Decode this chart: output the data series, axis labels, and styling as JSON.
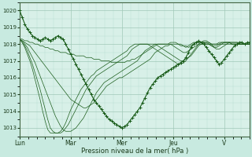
{
  "bg_color": "#c8eae0",
  "plot_bg": "#d8f0e8",
  "grid_color_major": "#a0c8b8",
  "grid_color_minor": "#b8ddd0",
  "line_color": "#1a5c1a",
  "xlabel": "Pression niveau de la mer( hPa )",
  "xtick_labels": [
    "Lun",
    "Mar",
    "Mer",
    "Jeu",
    "V"
  ],
  "xtick_positions": [
    0,
    1,
    2,
    3,
    4
  ],
  "ylim": [
    1012.5,
    1020.5
  ],
  "yticks": [
    1013,
    1014,
    1015,
    1016,
    1017,
    1018,
    1019,
    1020
  ],
  "xlim": [
    0,
    4.5
  ],
  "n_pts": 91,
  "observed": [
    1020.0,
    1019.6,
    1019.2,
    1018.9,
    1018.7,
    1018.5,
    1018.4,
    1018.3,
    1018.2,
    1018.3,
    1018.4,
    1018.3,
    1018.2,
    1018.3,
    1018.4,
    1018.5,
    1018.4,
    1018.3,
    1018.0,
    1017.7,
    1017.4,
    1017.1,
    1016.8,
    1016.5,
    1016.2,
    1015.9,
    1015.6,
    1015.3,
    1015.0,
    1014.7,
    1014.5,
    1014.3,
    1014.1,
    1013.9,
    1013.7,
    1013.5,
    1013.4,
    1013.3,
    1013.2,
    1013.1,
    1013.0,
    1013.1,
    1013.2,
    1013.4,
    1013.6,
    1013.8,
    1014.0,
    1014.2,
    1014.5,
    1014.8,
    1015.1,
    1015.4,
    1015.6,
    1015.8,
    1016.0,
    1016.1,
    1016.2,
    1016.3,
    1016.4,
    1016.5,
    1016.6,
    1016.7,
    1016.8,
    1016.9,
    1017.0,
    1017.2,
    1017.5,
    1017.8,
    1018.0,
    1018.1,
    1018.2,
    1018.1,
    1018.0,
    1017.8,
    1017.6,
    1017.4,
    1017.2,
    1017.0,
    1016.8,
    1016.9,
    1017.1,
    1017.3,
    1017.5,
    1017.7,
    1017.9,
    1018.0,
    1018.1,
    1018.1,
    1018.0,
    1018.1,
    1018.1
  ],
  "forecasts": [
    [
      1018.3,
      1018.3,
      1018.2,
      1018.2,
      1018.1,
      1018.1,
      1018.0,
      1018.0,
      1017.9,
      1017.9,
      1017.8,
      1017.8,
      1017.7,
      1017.7,
      1017.6,
      1017.6,
      1017.5,
      1017.5,
      1017.5,
      1017.4,
      1017.4,
      1017.4,
      1017.3,
      1017.3,
      1017.3,
      1017.3,
      1017.2,
      1017.2,
      1017.2,
      1017.1,
      1017.1,
      1017.1,
      1017.0,
      1017.0,
      1017.0,
      1017.0,
      1016.9,
      1016.9,
      1016.9,
      1016.9,
      1016.9,
      1016.9,
      1017.0,
      1017.0,
      1017.1,
      1017.1,
      1017.2,
      1017.3,
      1017.4,
      1017.5,
      1017.6,
      1017.7,
      1017.8,
      1017.9,
      1018.0,
      1018.0,
      1018.0,
      1018.0,
      1018.0,
      1018.1,
      1018.1,
      1018.1,
      1018.0,
      1018.0,
      1017.9,
      1017.9,
      1017.8,
      1017.9,
      1018.0,
      1018.1,
      1018.1,
      1018.1,
      1018.1,
      1018.1,
      1018.1,
      1018.0,
      1018.0,
      1018.0,
      1018.0,
      1018.1,
      1018.1,
      1018.1,
      1018.1,
      1018.1,
      1018.1,
      1018.1,
      1018.0,
      1018.0,
      1018.0,
      1018.0,
      1018.0
    ],
    [
      1018.3,
      1018.2,
      1018.1,
      1018.0,
      1017.9,
      1017.7,
      1017.5,
      1017.3,
      1017.1,
      1016.9,
      1016.7,
      1016.5,
      1016.3,
      1016.1,
      1015.9,
      1015.7,
      1015.5,
      1015.3,
      1015.1,
      1014.9,
      1014.7,
      1014.6,
      1014.5,
      1014.4,
      1014.3,
      1014.2,
      1014.2,
      1014.3,
      1014.4,
      1014.5,
      1014.7,
      1014.9,
      1015.1,
      1015.3,
      1015.5,
      1015.6,
      1015.7,
      1015.8,
      1015.9,
      1016.0,
      1016.0,
      1016.1,
      1016.2,
      1016.3,
      1016.4,
      1016.5,
      1016.6,
      1016.7,
      1016.8,
      1016.9,
      1017.0,
      1017.1,
      1017.3,
      1017.5,
      1017.6,
      1017.7,
      1017.8,
      1017.9,
      1017.9,
      1018.0,
      1018.0,
      1018.0,
      1018.0,
      1017.9,
      1017.9,
      1017.8,
      1017.9,
      1018.0,
      1018.1,
      1018.1,
      1018.1,
      1018.1,
      1018.1,
      1018.0,
      1018.0,
      1018.0,
      1018.0,
      1018.0,
      1018.1,
      1018.1,
      1018.1,
      1018.1,
      1018.1,
      1018.0,
      1018.0,
      1018.0,
      1018.0,
      1018.0,
      1018.0,
      1018.0,
      1018.0
    ],
    [
      1018.3,
      1018.2,
      1018.0,
      1017.8,
      1017.5,
      1017.2,
      1016.9,
      1016.5,
      1016.1,
      1015.7,
      1015.3,
      1014.9,
      1014.5,
      1014.1,
      1013.7,
      1013.4,
      1013.1,
      1012.9,
      1012.8,
      1012.8,
      1012.8,
      1012.9,
      1013.0,
      1013.2,
      1013.4,
      1013.6,
      1013.9,
      1014.2,
      1014.5,
      1014.8,
      1015.1,
      1015.3,
      1015.5,
      1015.7,
      1015.8,
      1015.9,
      1016.0,
      1016.1,
      1016.2,
      1016.3,
      1016.4,
      1016.5,
      1016.6,
      1016.7,
      1016.8,
      1016.9,
      1017.0,
      1017.2,
      1017.4,
      1017.6,
      1017.7,
      1017.8,
      1017.9,
      1018.0,
      1018.0,
      1018.0,
      1018.0,
      1018.0,
      1018.0,
      1018.0,
      1017.9,
      1017.8,
      1017.7,
      1017.6,
      1017.5,
      1017.5,
      1017.6,
      1017.7,
      1017.8,
      1017.9,
      1018.0,
      1018.0,
      1018.0,
      1018.0,
      1018.0,
      1017.9,
      1017.9,
      1017.9,
      1018.0,
      1018.0,
      1018.0,
      1018.0,
      1018.0,
      1018.0,
      1018.0,
      1018.0,
      1018.0,
      1018.0,
      1018.0,
      1018.0,
      1018.0
    ],
    [
      1018.3,
      1018.1,
      1017.9,
      1017.6,
      1017.2,
      1016.8,
      1016.3,
      1015.8,
      1015.3,
      1014.7,
      1014.1,
      1013.5,
      1013.0,
      1012.8,
      1012.7,
      1012.7,
      1012.7,
      1012.8,
      1013.0,
      1013.2,
      1013.5,
      1013.8,
      1014.1,
      1014.4,
      1014.7,
      1015.0,
      1015.3,
      1015.5,
      1015.7,
      1015.9,
      1016.1,
      1016.2,
      1016.3,
      1016.4,
      1016.5,
      1016.6,
      1016.7,
      1016.8,
      1016.9,
      1017.0,
      1017.1,
      1017.2,
      1017.3,
      1017.5,
      1017.7,
      1017.8,
      1017.9,
      1018.0,
      1018.0,
      1018.0,
      1018.0,
      1018.0,
      1018.0,
      1018.0,
      1017.9,
      1017.8,
      1017.7,
      1017.6,
      1017.5,
      1017.4,
      1017.3,
      1017.2,
      1017.1,
      1017.0,
      1017.0,
      1017.1,
      1017.2,
      1017.3,
      1017.5,
      1017.7,
      1017.9,
      1018.0,
      1018.1,
      1018.1,
      1018.0,
      1017.9,
      1017.8,
      1017.8,
      1017.9,
      1018.0,
      1018.1,
      1018.1,
      1018.1,
      1018.0,
      1018.0,
      1018.0,
      1018.0,
      1018.0,
      1018.0,
      1018.0,
      1018.0
    ],
    [
      1018.3,
      1018.1,
      1017.8,
      1017.4,
      1017.0,
      1016.5,
      1015.9,
      1015.3,
      1014.7,
      1014.0,
      1013.4,
      1012.9,
      1012.7,
      1012.7,
      1012.7,
      1012.7,
      1012.8,
      1013.0,
      1013.3,
      1013.7,
      1014.1,
      1014.4,
      1014.7,
      1015.0,
      1015.3,
      1015.5,
      1015.7,
      1015.9,
      1016.1,
      1016.2,
      1016.4,
      1016.5,
      1016.6,
      1016.7,
      1016.8,
      1016.9,
      1017.0,
      1017.1,
      1017.2,
      1017.3,
      1017.4,
      1017.5,
      1017.6,
      1017.8,
      1017.9,
      1018.0,
      1018.0,
      1018.0,
      1018.0,
      1018.0,
      1018.0,
      1017.9,
      1017.8,
      1017.7,
      1017.6,
      1017.5,
      1017.4,
      1017.3,
      1017.2,
      1017.1,
      1017.0,
      1016.9,
      1016.8,
      1016.8,
      1016.9,
      1017.0,
      1017.2,
      1017.4,
      1017.6,
      1017.8,
      1018.0,
      1018.1,
      1018.2,
      1018.2,
      1018.1,
      1018.0,
      1017.8,
      1017.7,
      1017.7,
      1017.8,
      1017.9,
      1018.0,
      1018.1,
      1018.1,
      1018.1,
      1018.1,
      1018.1,
      1018.1,
      1018.0,
      1018.0,
      1018.0
    ]
  ]
}
